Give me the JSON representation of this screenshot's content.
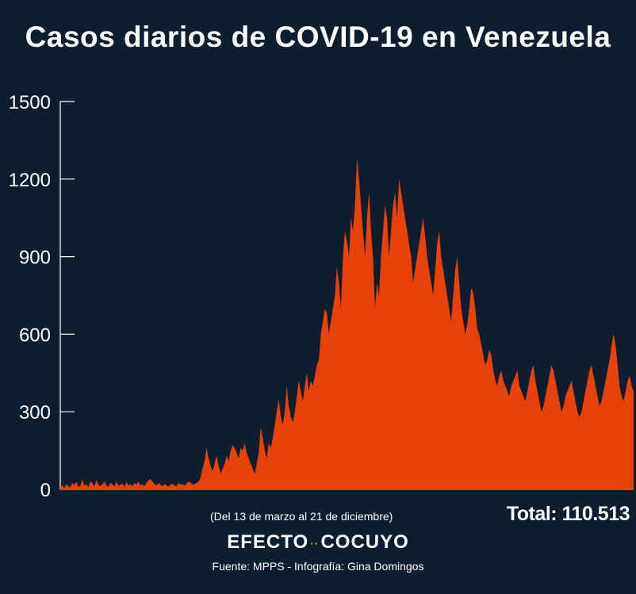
{
  "chart_data": {
    "type": "area",
    "title": "Casos diarios de COVID-19 en Venezuela",
    "subtitle": "(Del 13 de marzo al 21 de diciembre)",
    "total_label": "Total: 110.513",
    "ylim": [
      0,
      1500
    ],
    "yticks": [
      "0",
      "300",
      "600",
      "900",
      "1200",
      "1500"
    ],
    "fill_color": "#e8420a",
    "background_color": "#0e1e2e",
    "start_date": "2020-03-13",
    "end_date": "2020-12-21",
    "values": [
      10,
      15,
      5,
      20,
      12,
      8,
      25,
      18,
      30,
      10,
      12,
      40,
      15,
      20,
      8,
      30,
      25,
      10,
      35,
      18,
      12,
      20,
      30,
      15,
      10,
      25,
      20,
      12,
      30,
      15,
      18,
      22,
      10,
      28,
      15,
      20,
      12,
      25,
      18,
      30,
      15,
      20,
      12,
      25,
      35,
      40,
      30,
      20,
      15,
      25,
      18,
      12,
      20,
      15,
      10,
      18,
      22,
      15,
      12,
      25,
      18,
      20,
      15,
      22,
      30,
      25,
      18,
      20,
      25,
      30,
      45,
      80,
      110,
      160,
      120,
      90,
      70,
      100,
      130,
      90,
      60,
      80,
      100,
      130,
      110,
      150,
      170,
      160,
      140,
      120,
      160,
      150,
      180,
      140,
      120,
      100,
      80,
      60,
      100,
      140,
      240,
      200,
      150,
      120,
      180,
      160,
      200,
      250,
      300,
      350,
      280,
      250,
      300,
      400,
      320,
      280,
      260,
      300,
      360,
      420,
      380,
      340,
      400,
      450,
      380,
      420,
      400,
      440,
      480,
      500,
      600,
      650,
      700,
      680,
      600,
      650,
      700,
      750,
      860,
      800,
      700,
      900,
      1000,
      960,
      900,
      1050,
      1000,
      1100,
      1280,
      1200,
      1100,
      1000,
      900,
      1050,
      1150,
      1000,
      900,
      700,
      800,
      750,
      900,
      1000,
      1100,
      1050,
      900,
      1000,
      1100,
      1150,
      1050,
      1200,
      1150,
      1100,
      1050,
      1000,
      950,
      900,
      800,
      850,
      900,
      950,
      1000,
      1050,
      980,
      900,
      850,
      800,
      750,
      850,
      950,
      1000,
      900,
      850,
      800,
      750,
      700,
      650,
      750,
      850,
      900,
      800,
      700,
      650,
      600,
      640,
      700,
      780,
      760,
      700,
      620,
      600,
      560,
      520,
      480,
      500,
      540,
      520,
      460,
      420,
      400,
      440,
      460,
      420,
      400,
      380,
      360,
      400,
      420,
      440,
      460,
      400,
      380,
      360,
      340,
      380,
      420,
      460,
      480,
      420,
      380,
      340,
      300,
      320,
      360,
      400,
      440,
      480,
      460,
      420,
      380,
      340,
      300,
      320,
      360,
      380,
      400,
      420,
      380,
      340,
      300,
      280,
      300,
      340,
      380,
      420,
      460,
      480,
      440,
      400,
      360,
      320,
      340,
      380,
      420,
      460,
      500,
      560,
      600,
      560,
      480,
      400,
      360,
      340,
      380,
      420,
      440,
      400,
      380
    ]
  },
  "footer": {
    "brand_left": "EFECTO",
    "brand_dots": "··",
    "brand_right": "COCUYO",
    "source": "Fuente: MPPS - Infografía: Gina Domingos"
  }
}
